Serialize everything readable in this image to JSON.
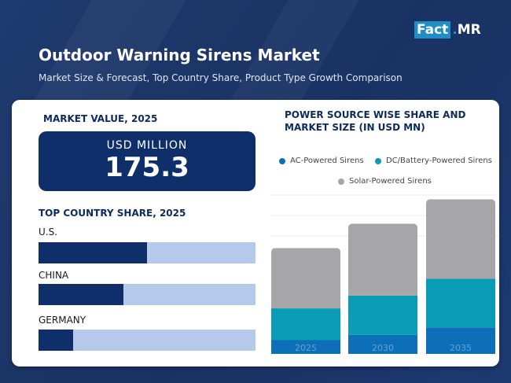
{
  "header": {
    "logo_fact": "Fact",
    "logo_dot": ".",
    "logo_mr": "MR",
    "title": "Outdoor Warning Sirens Market",
    "subtitle": "Market Size & Forecast, Top Country Share, Product Type Growth Comparison"
  },
  "market_value": {
    "heading": "MARKET VALUE, 2025",
    "unit": "USD MILLION",
    "value": "175.3"
  },
  "country_share": {
    "heading": "TOP COUNTRY SHARE, 2025",
    "countries": [
      {
        "name": "U.S.",
        "share": 0.5
      },
      {
        "name": "CHINA",
        "share": 0.39
      },
      {
        "name": "GERMANY",
        "share": 0.16
      }
    ]
  },
  "colors": {
    "navy": "#0f2f6b",
    "track": "#b5c9ea",
    "ac": "#0d6fb8",
    "dc": "#0a9bb5",
    "solar": "#a6a6a8"
  },
  "chart_data": {
    "type": "bar",
    "stacked": true,
    "title": "POWER SOURCE WISE SHARE AND MARKET SIZE (IN USD MN)",
    "categories": [
      "2025",
      "2030",
      "2035"
    ],
    "series": [
      {
        "name": "AC-Powered Sirens",
        "values": [
          13,
          18,
          25
        ]
      },
      {
        "name": "DC/Battery-Powered Sirens",
        "values": [
          30,
          37,
          46
        ]
      },
      {
        "name": "Solar-Powered Sirens",
        "values": [
          57,
          68,
          75
        ]
      }
    ],
    "ylim": [
      0,
      150
    ],
    "grid": true,
    "legend": "top"
  }
}
